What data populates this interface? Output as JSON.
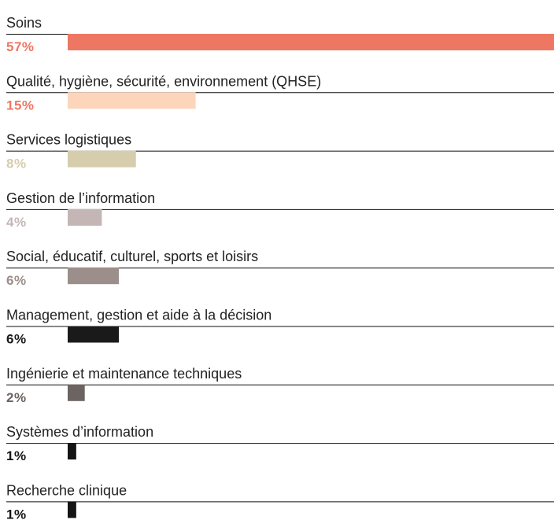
{
  "chart_data": {
    "type": "bar",
    "orientation": "horizontal",
    "categories": [
      "Soins",
      "Qualité, hygiène, sécurité, environnement (QHSE)",
      "Services logistiques",
      "Gestion de l’information",
      "Social, éducatif, culturel, sports et loisirs",
      "Management, gestion et aide à la décision",
      "Ingénierie et maintenance techniques",
      "Systèmes d’information",
      "Recherche clinique"
    ],
    "values": [
      57,
      15,
      8,
      4,
      6,
      6,
      2,
      1,
      1
    ],
    "value_labels": [
      "57%",
      "15%",
      "8%",
      "4%",
      "6%",
      "6%",
      "2%",
      "1%",
      "1%"
    ],
    "colors": [
      "#ee7763",
      "#fdd5bb",
      "#d5cdab",
      "#c4b6b5",
      "#9c8e8b",
      "#1b1a1a",
      "#6c6461",
      "#141414",
      "#141414"
    ],
    "label_colors": [
      "#ee7763",
      "#ee7763",
      "#d5cdab",
      "#c4b6b5",
      "#9c8e8b",
      "#1b1a1a",
      "#6c6461",
      "#141414",
      "#141414"
    ]
  }
}
